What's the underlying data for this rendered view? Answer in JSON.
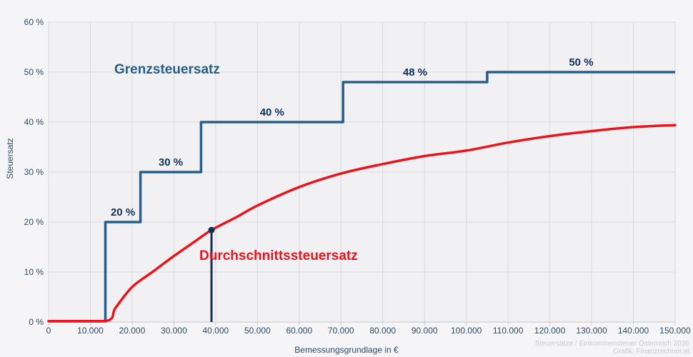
{
  "chart_data": {
    "type": "line",
    "title": "",
    "xlabel": "Bemessungsgrundlage in €",
    "ylabel": "Steuersatz",
    "xlim": [
      0,
      150000
    ],
    "ylim": [
      0,
      60
    ],
    "grid": true,
    "x_ticks": [
      0,
      10000,
      20000,
      30000,
      40000,
      50000,
      60000,
      70000,
      80000,
      90000,
      100000,
      110000,
      120000,
      130000,
      140000,
      150000
    ],
    "x_tick_labels": [
      "0",
      "10.000",
      "20.000",
      "30.000",
      "40.000",
      "50.000",
      "60.000",
      "70.000",
      "80.000",
      "90.000",
      "100.000",
      "110.000",
      "120.000",
      "130.000",
      "140.000",
      "150.000"
    ],
    "y_ticks": [
      0,
      10,
      20,
      30,
      40,
      50,
      60
    ],
    "y_tick_labels": [
      "0 %",
      "10 %",
      "20 %",
      "30 %",
      "40 %",
      "50 %",
      "60 %"
    ],
    "series": [
      {
        "name": "Grenzsteuersatz",
        "type": "step",
        "color": "#275f8a",
        "rates": [
          0,
          20,
          30,
          40,
          48,
          50
        ],
        "breakpoints": [
          13600,
          22000,
          36500,
          70500,
          105000
        ],
        "step_labels": [
          "20 %",
          "30 %",
          "40 %",
          "48 %",
          "50 %"
        ]
      },
      {
        "name": "Durchschnittssteuersatz",
        "type": "smooth",
        "color": "#e8141e",
        "points": [
          [
            0,
            0
          ],
          [
            13600,
            0
          ],
          [
            16000,
            2.8
          ],
          [
            20000,
            7.0
          ],
          [
            25000,
            10.1
          ],
          [
            30000,
            13.2
          ],
          [
            35000,
            16.1
          ],
          [
            39000,
            18.4
          ],
          [
            45000,
            21.0
          ],
          [
            50000,
            23.3
          ],
          [
            60000,
            27.0
          ],
          [
            70000,
            29.7
          ],
          [
            80000,
            31.6
          ],
          [
            90000,
            33.2
          ],
          [
            100000,
            34.3
          ],
          [
            110000,
            35.9
          ],
          [
            120000,
            37.2
          ],
          [
            130000,
            38.2
          ],
          [
            140000,
            39.0
          ],
          [
            150000,
            39.4
          ]
        ]
      }
    ],
    "marker": {
      "x": 39000,
      "rate": 18.4
    }
  },
  "palette": {
    "marginal_line": "#275f8a",
    "average_line": "#e8141e",
    "marker": "#12304f",
    "step_label_text": "#103355",
    "tick_text": "#2f4a62",
    "grid": "#dadade",
    "axis_line": "#c6c6ca",
    "plot_bg": "#f1f1f3",
    "page_bg": "#f5f5f7",
    "attribution_text": "#c9c9cd"
  },
  "attribution": {
    "line1": "Steuersätze / Einkommensteuer Österreich 2026",
    "line2": "Grafik: Finanzrechner.at"
  }
}
